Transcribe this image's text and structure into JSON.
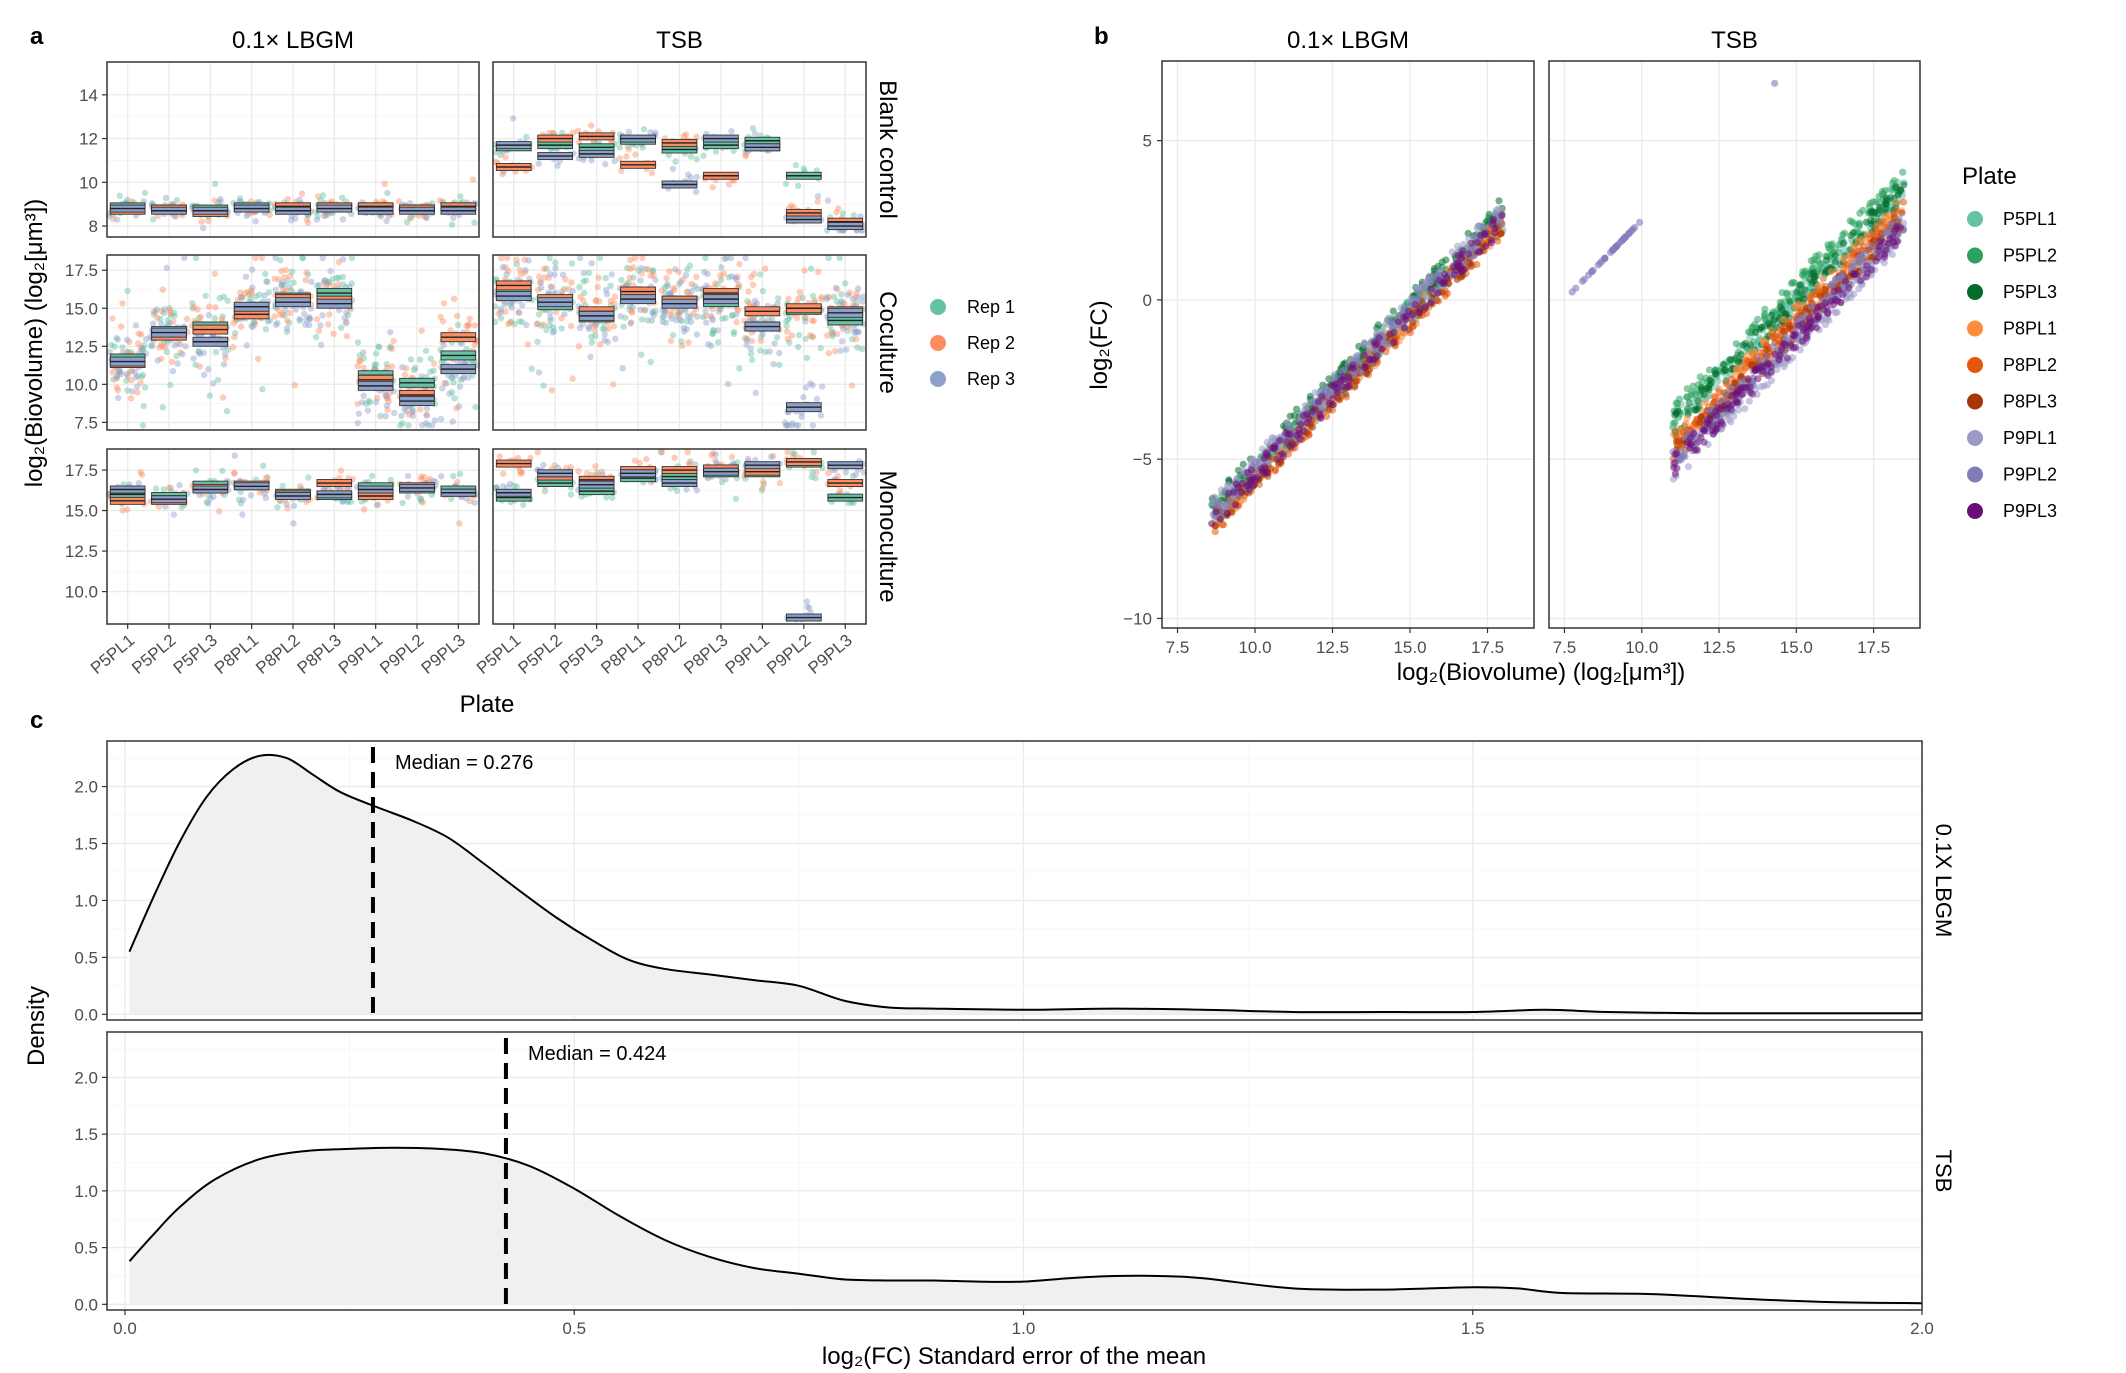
{
  "panel_letters": [
    "a",
    "b",
    "c"
  ],
  "colors": {
    "rep": [
      "#66c2a5",
      "#fc8d62",
      "#8da0cb"
    ],
    "plate": [
      "#66c2a5",
      "#2ca25f",
      "#006d2c",
      "#fd8d3c",
      "#e6550d",
      "#a63603",
      "#9e9ac8",
      "#807dba",
      "#6a0f7a"
    ],
    "density_fill": "#f0f0f0",
    "panel_border": "#333333",
    "grid": "#ebebeb"
  },
  "chart_data": [
    {
      "id": "a",
      "type": "box",
      "title": "",
      "columns": [
        "0.1× LBGM",
        "TSB"
      ],
      "rows": [
        "Blank control",
        "Coculture",
        "Monoculture"
      ],
      "categories": [
        "P5PL1",
        "P5PL2",
        "P5PL3",
        "P8PL1",
        "P8PL2",
        "P8PL3",
        "P9PL1",
        "P9PL2",
        "P9PL3"
      ],
      "xlabel": "Plate",
      "ylabel": "log₂(Biovolume) (log₂[μm³])",
      "legend": {
        "entries": [
          "Rep 1",
          "Rep 2",
          "Rep 3"
        ],
        "placement": "right"
      },
      "row_ylim": [
        [
          7.5,
          15.5
        ],
        [
          7,
          18.5
        ],
        [
          8,
          18.8
        ]
      ],
      "row_yticks": [
        [
          "8",
          "10",
          "12",
          "14"
        ],
        [
          "7.5",
          "10.0",
          "12.5",
          "15.0",
          "17.5"
        ],
        [
          "10.0",
          "12.5",
          "15.0",
          "17.5"
        ]
      ],
      "medians": {
        "0.1× LBGM": {
          "Blank control": [
            [
              8.9,
              8.7,
              8.8
            ],
            [
              8.8,
              8.8,
              8.7
            ],
            [
              8.8,
              8.6,
              8.7
            ],
            [
              8.9,
              8.8,
              8.8
            ],
            [
              8.9,
              8.9,
              8.7
            ],
            [
              8.9,
              8.9,
              8.8
            ],
            [
              8.9,
              8.9,
              8.7
            ],
            [
              8.8,
              8.8,
              8.7
            ],
            [
              8.9,
              8.9,
              8.7
            ]
          ],
          "Coculture": [
            [
              11.7,
              11.4,
              11.5
            ],
            [
              13.5,
              13.2,
              13.4
            ],
            [
              13.8,
              13.6,
              12.8
            ],
            [
              15.0,
              14.6,
              15.1
            ],
            [
              15.7,
              15.6,
              15.4
            ],
            [
              16.0,
              15.5,
              15.3
            ],
            [
              10.6,
              10.3,
              9.9
            ],
            [
              10.1,
              9.3,
              8.9
            ],
            [
              11.9,
              13.1,
              11.0
            ]
          ],
          "Monoculture": [
            [
              16.0,
              15.6,
              16.3
            ],
            [
              15.9,
              15.6,
              15.7
            ],
            [
              16.6,
              16.4,
              16.3
            ],
            [
              16.5,
              16.6,
              16.5
            ],
            [
              16.1,
              16.0,
              15.9
            ],
            [
              15.9,
              16.7,
              16.0
            ],
            [
              16.5,
              15.9,
              16.3
            ],
            [
              16.3,
              16.5,
              16.4
            ],
            [
              16.3,
              16.1,
              16.1
            ]
          ]
        },
        "TSB": {
          "Blank control": [
            [
              11.6,
              10.7,
              11.7
            ],
            [
              11.7,
              12.0,
              11.2
            ],
            [
              11.6,
              12.1,
              11.3
            ],
            [
              11.9,
              10.8,
              12.0
            ],
            [
              11.5,
              11.8,
              9.9
            ],
            [
              11.7,
              10.3,
              12.0
            ],
            [
              11.9,
              11.6,
              11.6
            ],
            [
              10.3,
              8.6,
              8.3
            ],
            [
              8.0,
              8.2,
              8.0
            ]
          ],
          "Coculture": [
            [
              16.0,
              16.5,
              15.8
            ],
            [
              15.2,
              15.6,
              15.4
            ],
            [
              14.4,
              14.8,
              14.5
            ],
            [
              15.7,
              16.1,
              15.6
            ],
            [
              15.5,
              15.5,
              15.3
            ],
            [
              15.4,
              16.0,
              15.6
            ],
            [
              13.8,
              14.8,
              13.8
            ],
            [
              14.9,
              15.0,
              8.5
            ],
            [
              14.2,
              14.8,
              14.7
            ]
          ],
          "Monoculture": [
            [
              15.8,
              17.9,
              16.1
            ],
            [
              16.7,
              17.1,
              17.3
            ],
            [
              16.2,
              16.9,
              16.6
            ],
            [
              17.0,
              17.5,
              17.3
            ],
            [
              17.1,
              17.5,
              16.7
            ],
            [
              17.3,
              17.6,
              17.4
            ],
            [
              17.3,
              17.4,
              17.8
            ],
            [
              17.9,
              18.0,
              8.4
            ],
            [
              15.8,
              16.7,
              17.8
            ]
          ]
        }
      }
    },
    {
      "id": "b",
      "type": "scatter",
      "title": "",
      "columns": [
        "0.1× LBGM",
        "TSB"
      ],
      "xlabel": "log₂(Biovolume) (log₂[μm³])",
      "ylabel": "log₂(FC)",
      "xlim": [
        7,
        19
      ],
      "ylim": [
        -10.3,
        7.5
      ],
      "xticks": [
        "7.5",
        "10.0",
        "12.5",
        "15.0",
        "17.5"
      ],
      "yticks": [
        "5",
        "0",
        "−5",
        "−10"
      ],
      "legend": {
        "title": "Plate",
        "entries": [
          "P5PL1",
          "P5PL2",
          "P5PL3",
          "P8PL1",
          "P8PL2",
          "P8PL3",
          "P9PL1",
          "P9PL2",
          "P9PL3"
        ],
        "placement": "right"
      },
      "trends": {
        "0.1× LBGM": {
          "x_range": [
            8.6,
            18.0
          ],
          "offsets": [
            -15.5,
            -15.3,
            -15.1,
            -15.6,
            -15.7,
            -15.6,
            -15.2,
            -15.4,
            -15.5
          ]
        },
        "TSB": {
          "x_range": [
            7.6,
            18.5
          ],
          "offsets": [
            -14.9,
            -14.6,
            -15.0,
            -15.5,
            -15.7,
            -15.9,
            -16.4,
            -16.0,
            -16.2
          ],
          "P9PL2_cluster": {
            "x": [
              7.6,
              10.0
            ],
            "y": [
              0.1,
              2.5
            ]
          },
          "outlier": [
            14.3,
            6.8
          ]
        }
      }
    },
    {
      "id": "c",
      "type": "area",
      "title": "",
      "rows": [
        "0.1X LBGM",
        "TSB"
      ],
      "xlabel": "log₂(FC) Standard error of the mean",
      "ylabel": "Density",
      "xlim": [
        -0.02,
        2.0
      ],
      "ylim": [
        -0.05,
        2.4
      ],
      "xticks": [
        "0.0",
        "0.5",
        "1.0",
        "1.5",
        "2.0"
      ],
      "yticks": [
        "0.0",
        "0.5",
        "1.0",
        "1.5",
        "2.0"
      ],
      "series": [
        {
          "x": [
            0.005,
            0.03,
            0.06,
            0.09,
            0.12,
            0.15,
            0.18,
            0.21,
            0.24,
            0.28,
            0.32,
            0.36,
            0.4,
            0.44,
            0.48,
            0.52,
            0.56,
            0.6,
            0.65,
            0.7,
            0.75,
            0.8,
            0.85,
            0.9,
            1.0,
            1.1,
            1.2,
            1.3,
            1.4,
            1.5,
            1.58,
            1.65,
            1.75,
            1.85,
            2.0
          ],
          "y": [
            0.55,
            1.0,
            1.5,
            1.9,
            2.15,
            2.27,
            2.25,
            2.1,
            1.95,
            1.82,
            1.7,
            1.55,
            1.32,
            1.08,
            0.85,
            0.65,
            0.48,
            0.4,
            0.35,
            0.3,
            0.25,
            0.12,
            0.06,
            0.05,
            0.04,
            0.05,
            0.04,
            0.02,
            0.02,
            0.02,
            0.04,
            0.02,
            0.01,
            0.01,
            0.01
          ],
          "median": 0.276,
          "median_label": "Median = 0.276"
        },
        {
          "x": [
            0.005,
            0.03,
            0.06,
            0.1,
            0.15,
            0.2,
            0.25,
            0.3,
            0.35,
            0.4,
            0.45,
            0.5,
            0.55,
            0.6,
            0.65,
            0.7,
            0.75,
            0.8,
            0.85,
            0.9,
            0.95,
            1.0,
            1.05,
            1.1,
            1.15,
            1.2,
            1.3,
            1.4,
            1.5,
            1.55,
            1.6,
            1.7,
            1.8,
            1.9,
            2.0
          ],
          "y": [
            0.38,
            0.6,
            0.85,
            1.1,
            1.28,
            1.35,
            1.37,
            1.38,
            1.37,
            1.33,
            1.22,
            1.02,
            0.78,
            0.57,
            0.42,
            0.32,
            0.27,
            0.22,
            0.21,
            0.21,
            0.2,
            0.2,
            0.23,
            0.25,
            0.25,
            0.23,
            0.14,
            0.13,
            0.15,
            0.14,
            0.1,
            0.09,
            0.05,
            0.02,
            0.01
          ],
          "median": 0.424,
          "median_label": "Median = 0.424"
        }
      ]
    }
  ]
}
